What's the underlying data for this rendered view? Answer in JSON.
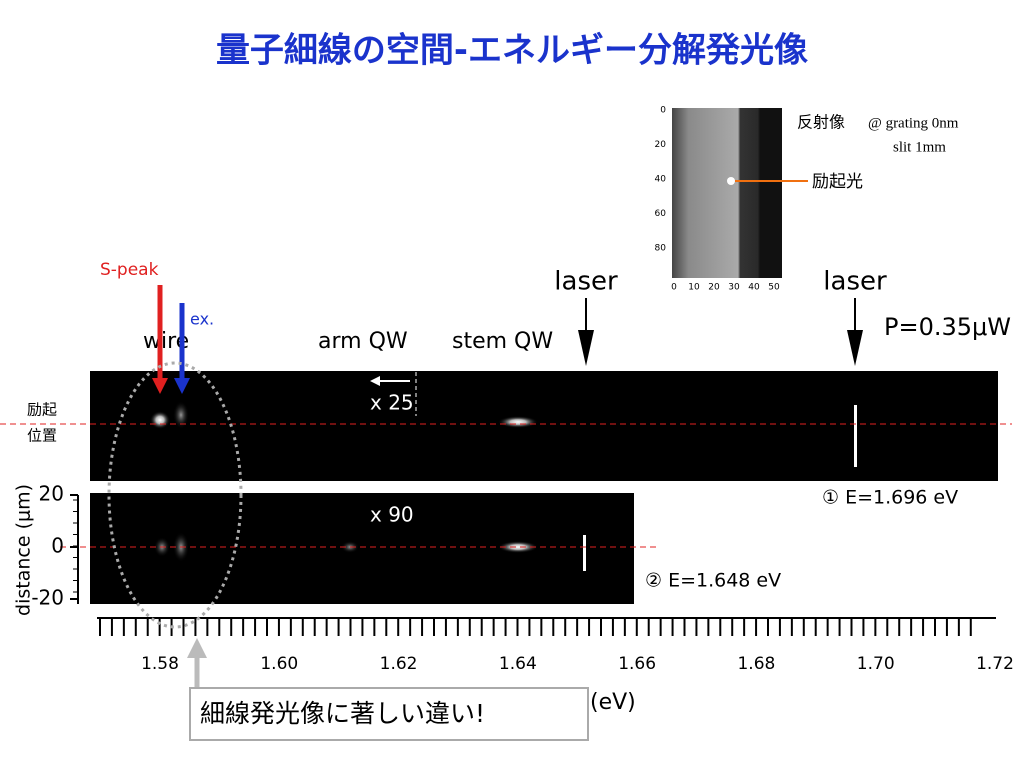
{
  "title": "量子細線の空間-エネルギー分解発光像",
  "inset": {
    "label": "反射像",
    "grating": "@ grating 0nm",
    "slit": "slit 1mm",
    "spot": "励起光",
    "yticks": [
      "0",
      "20",
      "40",
      "60",
      "80"
    ],
    "xticks": [
      "0",
      "10",
      "20",
      "30",
      "40",
      "50"
    ]
  },
  "labels": {
    "s_peak": "S-peak",
    "ex": "ex.",
    "wire": "wire",
    "arm": "arm QW",
    "stem": "stem QW",
    "laser1": "laser",
    "laser2": "laser",
    "power": "P=0.35μW",
    "x25": "x 25",
    "x90": "x 90",
    "excite1": "励起",
    "excite2": "位置",
    "e1": "① E=1.696 eV",
    "e2": "② E=1.648 eV"
  },
  "y_axis": {
    "label": "distance (μm)",
    "ticks": [
      "20",
      "0",
      "-20"
    ]
  },
  "x_axis": {
    "label": "(eV)",
    "ticks": [
      "1.58",
      "1.60",
      "1.62",
      "1.64",
      "1.66",
      "1.68",
      "1.70",
      "1.72"
    ]
  },
  "callout": "細線発光像に著しい違い!"
}
